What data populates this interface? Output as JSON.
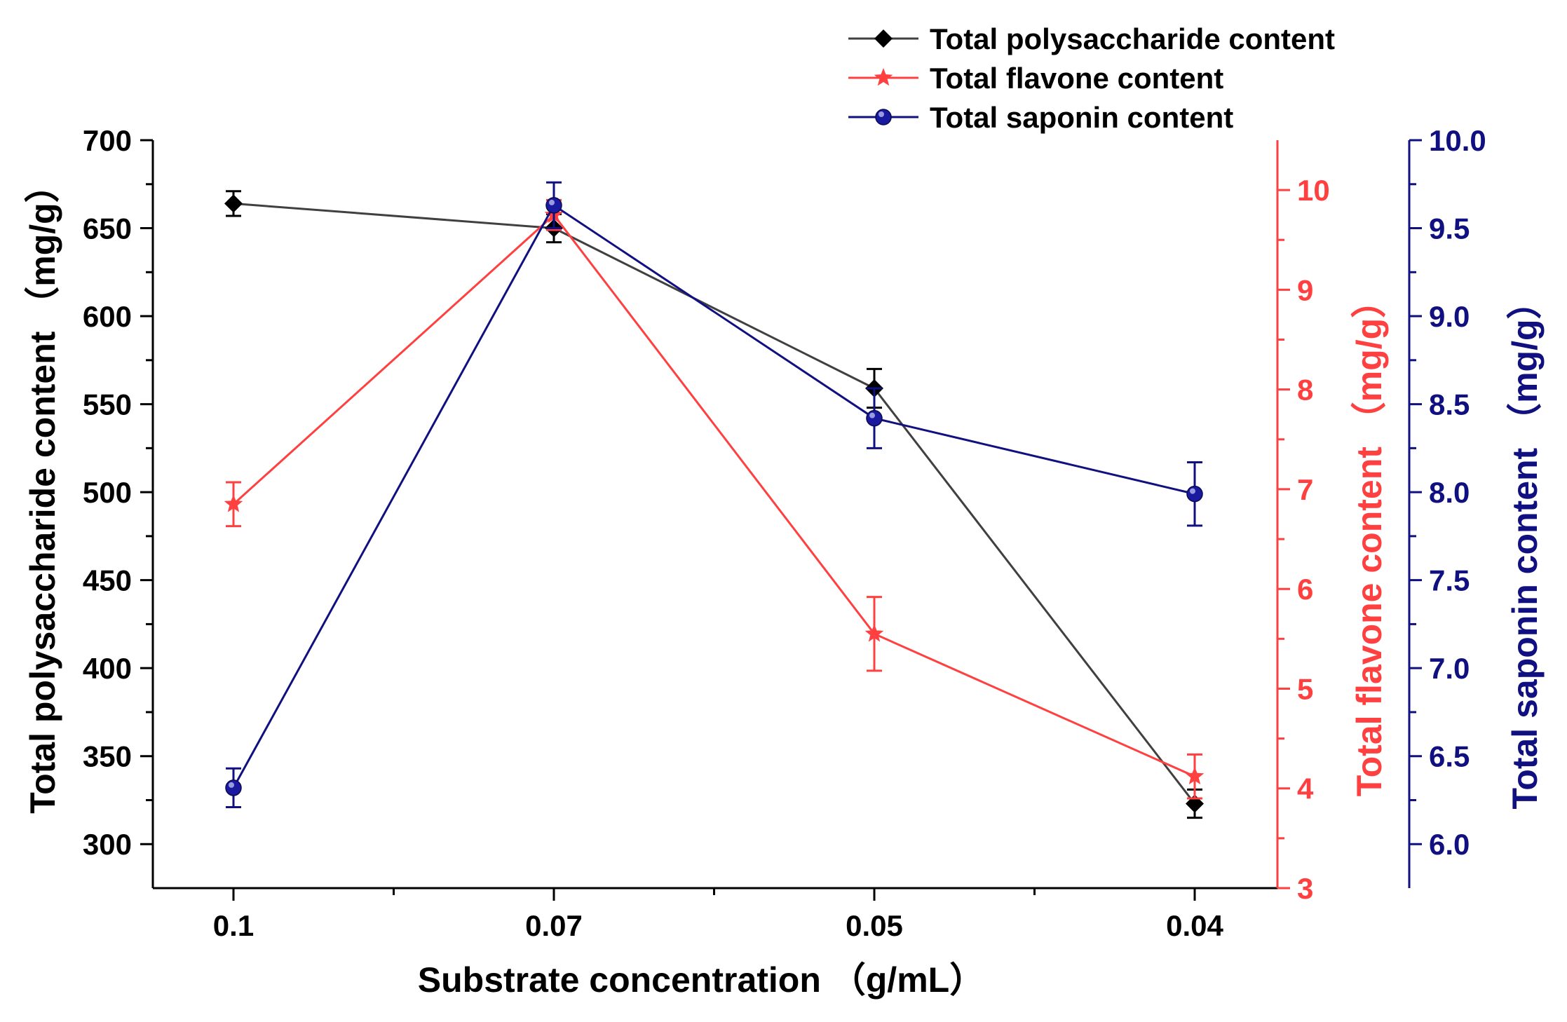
{
  "chart_data": {
    "type": "line",
    "categories": [
      "0.1",
      "0.07",
      "0.05",
      "0.04"
    ],
    "xlabel": "Substrate concentration （g/mL）",
    "axes": {
      "left": {
        "label": "Total polysaccharide content （mg/g）",
        "ylim": [
          275,
          700
        ],
        "ticks": [
          300,
          350,
          400,
          450,
          500,
          550,
          600,
          650,
          700
        ],
        "tick_labels": [
          "300",
          "350",
          "400",
          "450",
          "500",
          "550",
          "600",
          "650",
          "700"
        ],
        "color": "#000000"
      },
      "right_flavone": {
        "label": "Total flavone content （mg/g）",
        "ylim": [
          3,
          10.5
        ],
        "ticks": [
          3,
          4,
          5,
          6,
          7,
          8,
          9,
          10
        ],
        "tick_labels": [
          "3",
          "4",
          "5",
          "6",
          "7",
          "8",
          "9",
          "10"
        ],
        "color": "#ff4040"
      },
      "right_saponin": {
        "label": "Total saponin content （mg/g）",
        "ylim": [
          5.75,
          10.0
        ],
        "ticks": [
          6.0,
          6.5,
          7.0,
          7.5,
          8.0,
          8.5,
          9.0,
          9.5,
          10.0
        ],
        "tick_labels": [
          "6.0",
          "6.5",
          "7.0",
          "7.5",
          "8.0",
          "8.5",
          "9.0",
          "9.5",
          "10.0"
        ],
        "color": "#101080"
      }
    },
    "series": [
      {
        "name": "Total polysaccharide content",
        "axis": "left",
        "marker": "diamond",
        "color": "#404040",
        "marker_color": "#000000",
        "values": [
          664,
          650,
          559,
          323
        ],
        "errors": [
          7,
          8,
          11,
          8
        ]
      },
      {
        "name": "Total flavone content",
        "axis": "right_flavone",
        "marker": "star",
        "color": "#ff4040",
        "marker_color": "#ff4040",
        "values": [
          6.85,
          9.75,
          5.55,
          4.12
        ],
        "errors": [
          0.22,
          0.15,
          0.37,
          0.22
        ]
      },
      {
        "name": "Total saponin content",
        "axis": "right_saponin",
        "marker": "circle",
        "color": "#101080",
        "marker_color": "#1a1aa0",
        "values": [
          6.32,
          9.63,
          8.42,
          7.99
        ],
        "errors": [
          0.11,
          0.13,
          0.17,
          0.18
        ]
      }
    ],
    "legend": "top-right",
    "grid": false
  }
}
